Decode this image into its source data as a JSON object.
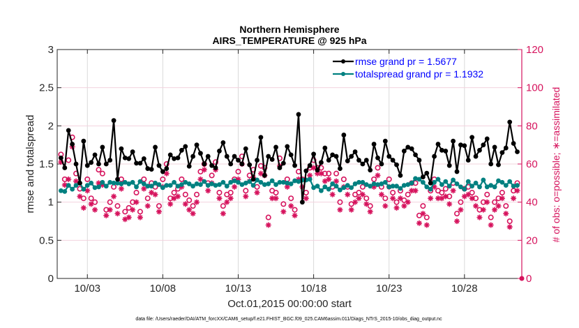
{
  "chart_data": {
    "type": "line",
    "title": "Northern Hemisphere",
    "subtitle": "AIRS_TEMPERATURE @ 925 hPa",
    "xlabel": "Oct.01,2015 00:00:00 start",
    "ylabel": "rmse and totalspread",
    "y2label": "# of obs: o=possible; ∗=assimilated",
    "footer": "data file: /Users/raeder/DAI/ATM_forcXX/CAM6_setup/f.e21.FHIST_BGC.f09_025.CAM6assim.011/Diags_NTrS_2015-10/obs_diag_output.nc",
    "xlim": [
      1,
      31.8
    ],
    "ylim": [
      0,
      3
    ],
    "y2lim": [
      0,
      120
    ],
    "x_ticks": [
      3,
      8,
      13,
      18,
      23,
      28
    ],
    "x_tick_labels": [
      "10/03",
      "10/08",
      "10/13",
      "10/18",
      "10/23",
      "10/28"
    ],
    "y_ticks": [
      0,
      0.5,
      1,
      1.5,
      2,
      2.5,
      3
    ],
    "y_tick_labels": [
      "0",
      "0.5",
      "1",
      "1.5",
      "2",
      "2.5",
      "3"
    ],
    "y2_ticks": [
      0,
      20,
      40,
      60,
      80,
      100,
      120
    ],
    "y2_tick_labels": [
      "0",
      "20",
      "40",
      "60",
      "80",
      "100",
      "120"
    ],
    "grid": "x and y2",
    "legend_position": "top-right",
    "colors": {
      "rmse": "#000000",
      "totalspread": "#008080",
      "obs": "#d6135d",
      "legend_text": "#0000ff",
      "axis": "#262626"
    },
    "x_start_day": 1.25,
    "x_step_days": 0.25,
    "series": [
      {
        "name": "rmse grand pr = 1.5677",
        "axis": "left",
        "marker": "filled-circle",
        "values": [
          1.58,
          1.45,
          1.94,
          1.76,
          1.5,
          1.25,
          1.8,
          1.48,
          1.52,
          1.62,
          1.5,
          1.72,
          1.5,
          1.55,
          2.07,
          1.3,
          1.7,
          1.58,
          1.57,
          1.66,
          1.51,
          1.51,
          1.57,
          1.44,
          1.43,
          1.72,
          1.48,
          1.4,
          1.44,
          1.62,
          1.57,
          1.58,
          1.68,
          1.73,
          1.47,
          1.6,
          1.75,
          1.64,
          1.5,
          1.6,
          1.48,
          1.45,
          1.67,
          1.78,
          1.6,
          1.5,
          1.6,
          1.55,
          1.5,
          1.7,
          1.49,
          1.3,
          1.55,
          1.85,
          1.35,
          1.6,
          1.56,
          1.72,
          1.45,
          1.51,
          1.73,
          1.62,
          1.48,
          2.15,
          1.0,
          1.41,
          1.48,
          1.63,
          1.42,
          1.52,
          1.71,
          1.55,
          1.62,
          1.6,
          1.44,
          1.88,
          1.54,
          1.6,
          1.66,
          1.55,
          1.5,
          1.55,
          1.42,
          1.76,
          1.58,
          1.5,
          1.8,
          1.6,
          1.55,
          1.49,
          1.35,
          1.67,
          1.72,
          1.7,
          1.62,
          1.55,
          1.33,
          1.38,
          1.25,
          1.6,
          1.76,
          1.68,
          1.67,
          1.48,
          1.8,
          1.4,
          1.75,
          1.74,
          1.55,
          1.85,
          1.6,
          1.68,
          1.75,
          1.83,
          1.5,
          1.72,
          1.49,
          1.65,
          1.71,
          2.05,
          1.77,
          1.66,
          1.67,
          1.65,
          1.65,
          1.65,
          1.53,
          1.7,
          1.56,
          1.4,
          1.75,
          1.33,
          1.82,
          1.35,
          1.62,
          1.46,
          1.65,
          1.45,
          1.69,
          1.48,
          1.78,
          1.4,
          1.41,
          1.2
        ]
      },
      {
        "name": "totalspread grand pr = 1.1932",
        "axis": "left",
        "marker": "filled-circle",
        "values": [
          1.15,
          1.14,
          1.22,
          1.17,
          1.22,
          1.25,
          1.17,
          1.22,
          1.25,
          1.19,
          1.2,
          1.26,
          1.21,
          1.26,
          1.25,
          1.25,
          1.24,
          1.26,
          1.24,
          1.26,
          1.2,
          1.27,
          1.24,
          1.21,
          1.21,
          1.25,
          1.23,
          1.19,
          1.22,
          1.22,
          1.26,
          1.21,
          1.23,
          1.26,
          1.24,
          1.21,
          1.24,
          1.23,
          1.27,
          1.22,
          1.24,
          1.22,
          1.23,
          1.26,
          1.21,
          1.26,
          1.28,
          1.26,
          1.23,
          1.25,
          1.27,
          1.22,
          1.29,
          1.26,
          1.23,
          1.24,
          1.28,
          1.23,
          1.26,
          1.26,
          1.25,
          1.24,
          1.28,
          1.27,
          1.29,
          1.29,
          1.3,
          1.19,
          1.21,
          1.15,
          1.2,
          1.17,
          1.24,
          1.21,
          1.16,
          1.19,
          1.22,
          1.19,
          1.24,
          1.26,
          1.26,
          1.23,
          1.21,
          1.24,
          1.23,
          1.24,
          1.26,
          1.2,
          1.21,
          1.21,
          1.18,
          1.22,
          1.23,
          1.25,
          1.31,
          1.3,
          1.26,
          1.2,
          1.17,
          1.26,
          1.3,
          1.23,
          1.27,
          1.21,
          1.29,
          1.24,
          1.2,
          1.17,
          1.27,
          1.21,
          1.25,
          1.2,
          1.29,
          1.2,
          1.22,
          1.2,
          1.28,
          1.26,
          1.22,
          1.27,
          1.21,
          1.22,
          1.23,
          1.24,
          1.2,
          1.18,
          1.24,
          1.19,
          1.21,
          1.17,
          1.21,
          1.23,
          1.21,
          1.27,
          1.2,
          1.22,
          1.24,
          1.17,
          1.21,
          1.22,
          1.24,
          1.18,
          1.14,
          1.17
        ]
      },
      {
        "name": "obs possible",
        "axis": "right",
        "marker": "open-circle",
        "values": [
          65,
          52,
          62,
          74,
          55,
          47,
          42,
          52,
          42,
          40,
          57,
          55,
          36,
          40,
          48,
          38,
          52,
          35,
          37,
          40,
          45,
          35,
          52,
          42,
          50,
          48,
          38,
          52,
          60,
          42,
          45,
          47,
          52,
          44,
          41,
          38,
          44,
          56,
          60,
          50,
          54,
          61,
          45,
          38,
          44,
          45,
          52,
          56,
          64,
          46,
          54,
          57,
          48,
          59,
          58,
          32,
          46,
          45,
          63,
          39,
          52,
          42,
          36,
          56,
          52,
          45,
          58,
          62,
          58,
          58,
          55,
          55,
          48,
          55,
          40,
          52,
          48,
          39,
          44,
          45,
          48,
          42,
          38,
          52,
          58,
          48,
          42,
          52,
          45,
          40,
          46,
          41,
          44,
          50,
          50,
          33,
          38,
          32,
          46,
          52,
          46,
          45,
          47,
          43,
          50,
          34,
          40,
          47,
          48,
          45,
          42,
          36,
          40,
          44,
          32,
          40,
          42,
          45,
          38,
          30,
          46,
          50,
          60,
          46,
          50,
          42,
          49,
          53,
          55,
          48,
          45,
          50,
          58,
          56,
          53,
          40,
          36,
          42,
          50,
          44,
          43,
          36,
          32,
          46,
          40
        ]
      },
      {
        "name": "obs assimilated",
        "axis": "right",
        "marker": "asterisk",
        "values": [
          61,
          49,
          52,
          69,
          51,
          43,
          37,
          46,
          39,
          36,
          50,
          49,
          33,
          36,
          43,
          34,
          47,
          31,
          32,
          36,
          40,
          32,
          47,
          38,
          45,
          44,
          35,
          48,
          55,
          39,
          42,
          43,
          48,
          39,
          36,
          34,
          40,
          52,
          57,
          46,
          50,
          57,
          42,
          34,
          40,
          42,
          48,
          52,
          60,
          43,
          51,
          53,
          45,
          55,
          54,
          28,
          42,
          42,
          59,
          35,
          48,
          38,
          33,
          52,
          48,
          42,
          54,
          58,
          55,
          55,
          51,
          52,
          44,
          51,
          36,
          48,
          44,
          36,
          40,
          42,
          44,
          39,
          35,
          48,
          54,
          44,
          38,
          48,
          42,
          37,
          42,
          38,
          40,
          46,
          46,
          29,
          34,
          28,
          42,
          48,
          42,
          42,
          43,
          39,
          46,
          30,
          36,
          43,
          44,
          42,
          38,
          32,
          36,
          40,
          28,
          36,
          38,
          42,
          34,
          27,
          42,
          46,
          56,
          42,
          46,
          38,
          45,
          49,
          51,
          44,
          41,
          46,
          54,
          52,
          49,
          36,
          32,
          38,
          46,
          40,
          39,
          32,
          28,
          42,
          39
        ]
      }
    ]
  }
}
